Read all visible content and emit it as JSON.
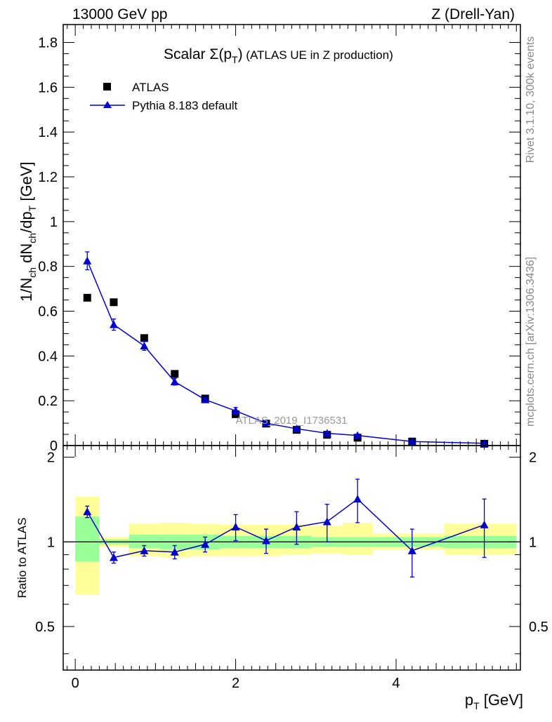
{
  "header": {
    "left": "13000 GeV pp",
    "right": "Z (Drell-Yan)"
  },
  "side_labels": {
    "rivet": "Rivet 3.1.10,  300k events",
    "mcplots": "mcplots.cern.ch [arXiv:1306.3436]"
  },
  "watermark": "ATLAS_2019_I1736531",
  "colors": {
    "data": "#000000",
    "mc": "#0000cc",
    "band_inner": "#99ff99",
    "band_outer": "#ffff99"
  },
  "chart_data": [
    {
      "type": "scatter",
      "title": {
        "main": "Scalar Σ(p",
        "sub": "T",
        "close": ")",
        "small": " (ATLAS UE in Z production)"
      },
      "ylabel_parts": [
        "1/N",
        "ch",
        " dN",
        "ch",
        "/dp",
        "T",
        " [GeV]"
      ],
      "xlim": [
        -0.15,
        5.55
      ],
      "ylim": [
        0,
        1.88
      ],
      "yticks": [
        "0",
        "0.2",
        "0.4",
        "0.6",
        "0.8",
        "1",
        "1.2",
        "1.4",
        "1.6",
        "1.8"
      ],
      "legend": {
        "position": "top-left",
        "entries": [
          "ATLAS",
          "Pythia 8.183 default"
        ]
      },
      "series": [
        {
          "name": "ATLAS",
          "marker": "square",
          "x": [
            0.15,
            0.48,
            0.86,
            1.24,
            1.62,
            2.0,
            2.38,
            2.76,
            3.14,
            3.52,
            4.2,
            5.1
          ],
          "y": [
            0.66,
            0.64,
            0.48,
            0.32,
            0.21,
            0.14,
            0.098,
            0.07,
            0.048,
            0.035,
            0.018,
            0.008
          ]
        },
        {
          "name": "Pythia 8.183 default",
          "marker": "triangle",
          "x": [
            0.15,
            0.48,
            0.86,
            1.24,
            1.62,
            2.0,
            2.38,
            2.76,
            3.14,
            3.52,
            4.2,
            5.1
          ],
          "y": [
            0.825,
            0.54,
            0.445,
            0.285,
            0.205,
            0.155,
            0.1,
            0.075,
            0.055,
            0.045,
            0.018,
            0.01
          ],
          "yerr": [
            0.04,
            0.025,
            0.02,
            0.015,
            0.01,
            0.015,
            0.01,
            0.008,
            0.006,
            0.005,
            0.003,
            0.003
          ]
        }
      ]
    },
    {
      "type": "line",
      "ylabel": "Ratio to ATLAS",
      "xlabel_main": "p",
      "xlabel_sub": "T",
      "xlabel_unit": " [GeV]",
      "xlim": [
        -0.15,
        5.55
      ],
      "ylim": [
        0.35,
        2.2
      ],
      "xticks": [
        0,
        2,
        4
      ],
      "xtick_labels": [
        "0",
        "2",
        "4"
      ],
      "yticks_labeled": [
        0.5,
        1,
        2
      ],
      "ytick_labels": [
        "0.5",
        "1",
        "2"
      ],
      "bands": {
        "edges": [
          0.0,
          0.3,
          0.67,
          1.05,
          1.43,
          1.81,
          2.19,
          2.57,
          2.95,
          3.33,
          3.71,
          4.6,
          5.5
        ],
        "inner_lo": [
          0.85,
          0.98,
          0.95,
          0.94,
          0.94,
          0.95,
          0.95,
          0.95,
          0.96,
          0.96,
          0.96,
          0.95
        ],
        "inner_hi": [
          1.23,
          1.02,
          1.06,
          1.06,
          1.06,
          1.05,
          1.05,
          1.05,
          1.04,
          1.04,
          1.04,
          1.05
        ],
        "outer_lo": [
          0.65,
          0.96,
          0.89,
          0.88,
          0.89,
          0.89,
          0.89,
          0.9,
          0.91,
          0.9,
          0.94,
          0.9
        ],
        "outer_hi": [
          1.45,
          1.04,
          1.16,
          1.17,
          1.16,
          1.15,
          1.15,
          1.15,
          1.14,
          1.17,
          1.07,
          1.16
        ]
      },
      "series": [
        {
          "name": "Pythia 8.183 default / ATLAS",
          "x": [
            0.15,
            0.48,
            0.86,
            1.24,
            1.62,
            2.0,
            2.38,
            2.76,
            3.14,
            3.52,
            4.2,
            5.1
          ],
          "y": [
            1.28,
            0.88,
            0.93,
            0.92,
            0.98,
            1.13,
            1.01,
            1.13,
            1.18,
            1.42,
            0.93,
            1.15
          ],
          "yerr": [
            0.06,
            0.04,
            0.04,
            0.05,
            0.06,
            0.12,
            0.1,
            0.15,
            0.18,
            0.25,
            0.18,
            0.27
          ]
        }
      ]
    }
  ]
}
